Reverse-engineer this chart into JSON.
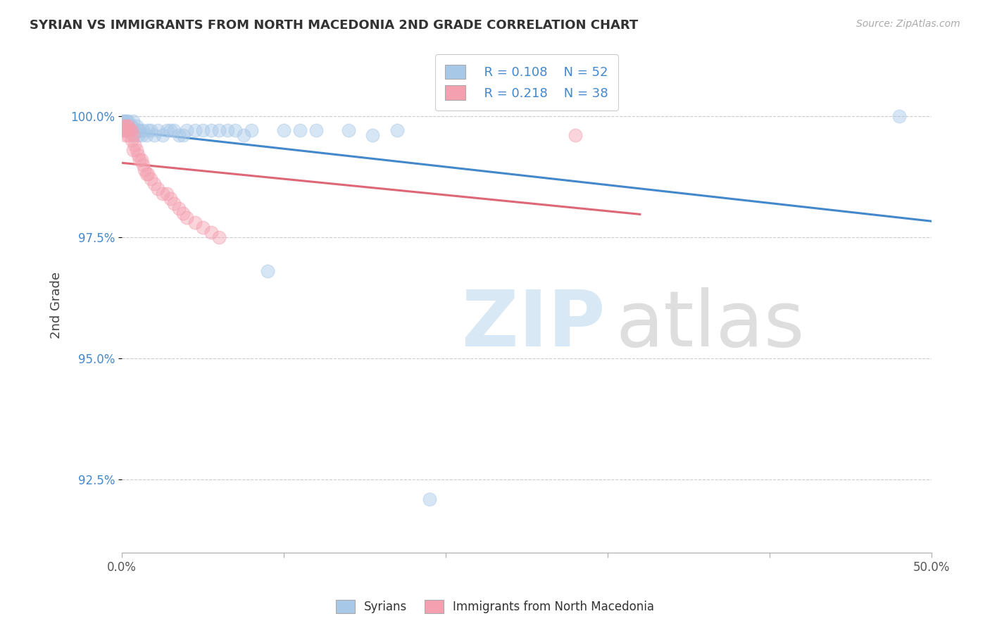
{
  "title": "SYRIAN VS IMMIGRANTS FROM NORTH MACEDONIA 2ND GRADE CORRELATION CHART",
  "source": "Source: ZipAtlas.com",
  "ylabel": "2nd Grade",
  "xlim": [
    0.0,
    0.5
  ],
  "ylim": [
    0.91,
    1.012
  ],
  "yticks": [
    0.925,
    0.95,
    0.975,
    1.0
  ],
  "ytick_labels": [
    "92.5%",
    "95.0%",
    "97.5%",
    "100.0%"
  ],
  "xticks": [
    0.0,
    0.1,
    0.2,
    0.3,
    0.4,
    0.5
  ],
  "xtick_labels": [
    "0.0%",
    "",
    "",
    "",
    "",
    "50.0%"
  ],
  "legend_r1": "R = 0.108",
  "legend_n1": "N = 52",
  "legend_r2": "R = 0.218",
  "legend_n2": "N = 38",
  "blue_color": "#a8c8e8",
  "pink_color": "#f4a0b0",
  "trend_blue": "#4488cc",
  "trend_pink": "#dd6677",
  "legend_label1": "Syrians",
  "legend_label2": "Immigrants from North Macedonia",
  "syrians_x": [
    0.001,
    0.001,
    0.002,
    0.002,
    0.002,
    0.003,
    0.003,
    0.003,
    0.004,
    0.004,
    0.005,
    0.005,
    0.006,
    0.006,
    0.007,
    0.007,
    0.008,
    0.009,
    0.01,
    0.01,
    0.011,
    0.012,
    0.013,
    0.015,
    0.016,
    0.018,
    0.02,
    0.022,
    0.025,
    0.028,
    0.03,
    0.032,
    0.035,
    0.038,
    0.04,
    0.045,
    0.05,
    0.055,
    0.06,
    0.065,
    0.07,
    0.075,
    0.08,
    0.09,
    0.1,
    0.11,
    0.12,
    0.14,
    0.155,
    0.17,
    0.19,
    0.48
  ],
  "syrians_y": [
    0.999,
    0.999,
    0.999,
    0.998,
    0.997,
    0.999,
    0.998,
    0.997,
    0.999,
    0.998,
    0.997,
    0.998,
    0.998,
    0.997,
    0.999,
    0.996,
    0.997,
    0.998,
    0.997,
    0.996,
    0.997,
    0.996,
    0.997,
    0.996,
    0.997,
    0.997,
    0.996,
    0.997,
    0.996,
    0.997,
    0.997,
    0.997,
    0.996,
    0.996,
    0.997,
    0.997,
    0.997,
    0.997,
    0.997,
    0.997,
    0.997,
    0.996,
    0.997,
    0.968,
    0.997,
    0.997,
    0.997,
    0.997,
    0.996,
    0.997,
    0.921,
    1.0
  ],
  "macedonia_x": [
    0.001,
    0.001,
    0.002,
    0.002,
    0.002,
    0.003,
    0.003,
    0.004,
    0.004,
    0.005,
    0.006,
    0.006,
    0.007,
    0.007,
    0.008,
    0.009,
    0.01,
    0.011,
    0.012,
    0.013,
    0.014,
    0.015,
    0.016,
    0.018,
    0.02,
    0.022,
    0.025,
    0.028,
    0.03,
    0.032,
    0.035,
    0.038,
    0.04,
    0.045,
    0.05,
    0.055,
    0.06,
    0.28
  ],
  "macedonia_y": [
    0.998,
    0.997,
    0.998,
    0.997,
    0.996,
    0.998,
    0.997,
    0.998,
    0.996,
    0.997,
    0.997,
    0.995,
    0.996,
    0.993,
    0.994,
    0.993,
    0.992,
    0.991,
    0.991,
    0.99,
    0.989,
    0.988,
    0.988,
    0.987,
    0.986,
    0.985,
    0.984,
    0.984,
    0.983,
    0.982,
    0.981,
    0.98,
    0.979,
    0.978,
    0.977,
    0.976,
    0.975,
    0.996
  ]
}
